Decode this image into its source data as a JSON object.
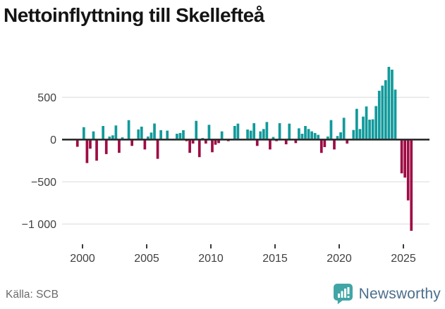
{
  "header": {
    "title": "Nettoinflyttning till Skellefteå"
  },
  "footer": {
    "source": "Källa: SCB",
    "brand": "Newsworthy"
  },
  "chart_data": {
    "type": "bar",
    "title": "Nettoinflyttning till Skellefteå",
    "frequency": "quarterly",
    "start_period": "1999 Q3",
    "end_period": "2025 Q3",
    "values": [
      -85,
      0,
      147,
      -278,
      -108,
      97,
      -250,
      0,
      161,
      -172,
      36,
      50,
      167,
      -157,
      27,
      0,
      230,
      -75,
      0,
      120,
      153,
      -117,
      36,
      83,
      190,
      -228,
      111,
      0,
      106,
      0,
      0,
      69,
      78,
      111,
      -19,
      -157,
      -47,
      222,
      -208,
      19,
      -47,
      175,
      -150,
      -61,
      -42,
      97,
      0,
      -19,
      0,
      161,
      189,
      0,
      0,
      119,
      106,
      194,
      -75,
      97,
      125,
      208,
      -117,
      31,
      -19,
      194,
      0,
      -56,
      189,
      0,
      -42,
      133,
      69,
      161,
      125,
      97,
      78,
      56,
      -158,
      -89,
      36,
      231,
      -117,
      42,
      86,
      258,
      -47,
      0,
      114,
      364,
      125,
      272,
      392,
      236,
      240,
      397,
      578,
      639,
      703,
      861,
      828,
      592,
      0,
      -400,
      -450,
      -720,
      -1080
    ],
    "positive_color": "#129A9B",
    "negative_color": "#9E0C44",
    "y_ticks": [
      {
        "value": 500,
        "label": "500"
      },
      {
        "value": 0,
        "label": "0"
      },
      {
        "value": -500,
        "label": "−500"
      },
      {
        "value": -1000,
        "label": "−1 000"
      }
    ],
    "x_ticks": [
      {
        "year": 2000,
        "label": "2000"
      },
      {
        "year": 2005,
        "label": "2005"
      },
      {
        "year": 2010,
        "label": "2010"
      },
      {
        "year": 2015,
        "label": "2015"
      },
      {
        "year": 2020,
        "label": "2020"
      },
      {
        "year": 2025,
        "label": "2025"
      }
    ],
    "ylim": [
      -1180,
      940
    ],
    "grid": true,
    "legend": "none",
    "source": "Källa: SCB"
  }
}
